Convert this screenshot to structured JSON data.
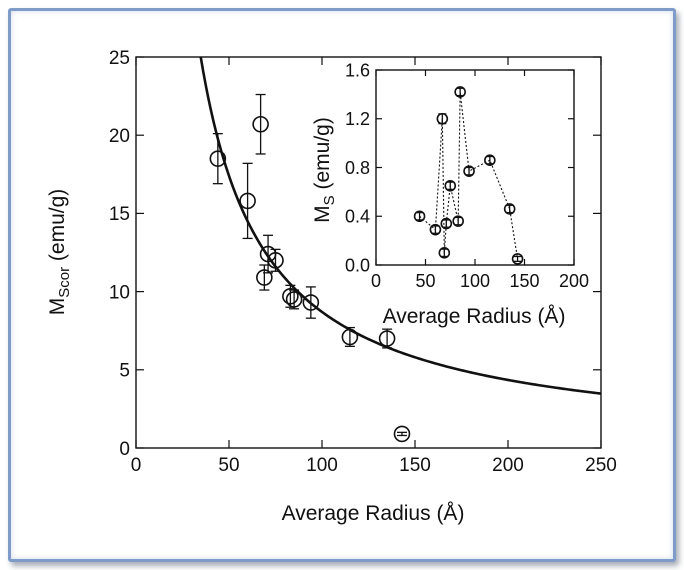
{
  "chart_data": [
    {
      "type": "scatter",
      "role": "main",
      "xlabel": "Average Radius (Å)",
      "ylabel": "M",
      "ylabel_sub": "Scor",
      "ylabel_unit": " (emu/g)",
      "xlim": [
        0,
        250
      ],
      "ylim": [
        0,
        25
      ],
      "xticks": [
        "0",
        "50",
        "100",
        "150",
        "200",
        "250"
      ],
      "yticks": [
        "0",
        "5",
        "10",
        "15",
        "20",
        "25"
      ],
      "points": [
        {
          "x": 44,
          "y": 18.5,
          "err": 1.6
        },
        {
          "x": 60,
          "y": 15.8,
          "err": 2.4
        },
        {
          "x": 67,
          "y": 20.7,
          "err": 1.9
        },
        {
          "x": 69,
          "y": 10.9,
          "err": 0.8
        },
        {
          "x": 71,
          "y": 12.4,
          "err": 1.2
        },
        {
          "x": 75,
          "y": 12.0,
          "err": 0.7
        },
        {
          "x": 83,
          "y": 9.7,
          "err": 0.7
        },
        {
          "x": 85,
          "y": 9.5,
          "err": 0.6
        },
        {
          "x": 94,
          "y": 9.3,
          "err": 1.0
        },
        {
          "x": 115,
          "y": 7.1,
          "err": 0.6
        },
        {
          "x": 135,
          "y": 7.0,
          "err": 0.6
        },
        {
          "x": 143,
          "y": 0.9,
          "err": 0.1
        }
      ],
      "fit_curve": {
        "form": "y = a / x",
        "a": 870
      }
    },
    {
      "type": "line",
      "role": "inset",
      "xlabel": "Average Radius (Å)",
      "ylabel": "M",
      "ylabel_sub": "S",
      "ylabel_unit": " (emu/g)",
      "xlim": [
        0,
        200
      ],
      "ylim": [
        0,
        1.6
      ],
      "xticks": [
        "0",
        "50",
        "100",
        "150",
        "200"
      ],
      "yticks": [
        "0.0",
        "0.4",
        "0.8",
        "1.2",
        "1.6"
      ],
      "line_style": "dotted",
      "points": [
        {
          "x": 44,
          "y": 0.4,
          "err": 0.03
        },
        {
          "x": 60,
          "y": 0.29,
          "err": 0.03
        },
        {
          "x": 67,
          "y": 1.2,
          "err": 0.04
        },
        {
          "x": 69,
          "y": 0.1,
          "err": 0.03
        },
        {
          "x": 71,
          "y": 0.34,
          "err": 0.03
        },
        {
          "x": 75,
          "y": 0.65,
          "err": 0.03
        },
        {
          "x": 83,
          "y": 0.36,
          "err": 0.03
        },
        {
          "x": 85,
          "y": 1.42,
          "err": 0.03
        },
        {
          "x": 94,
          "y": 0.77,
          "err": 0.03
        },
        {
          "x": 115,
          "y": 0.86,
          "err": 0.03
        },
        {
          "x": 135,
          "y": 0.46,
          "err": 0.03
        },
        {
          "x": 143,
          "y": 0.05,
          "err": 0.02
        }
      ]
    }
  ]
}
